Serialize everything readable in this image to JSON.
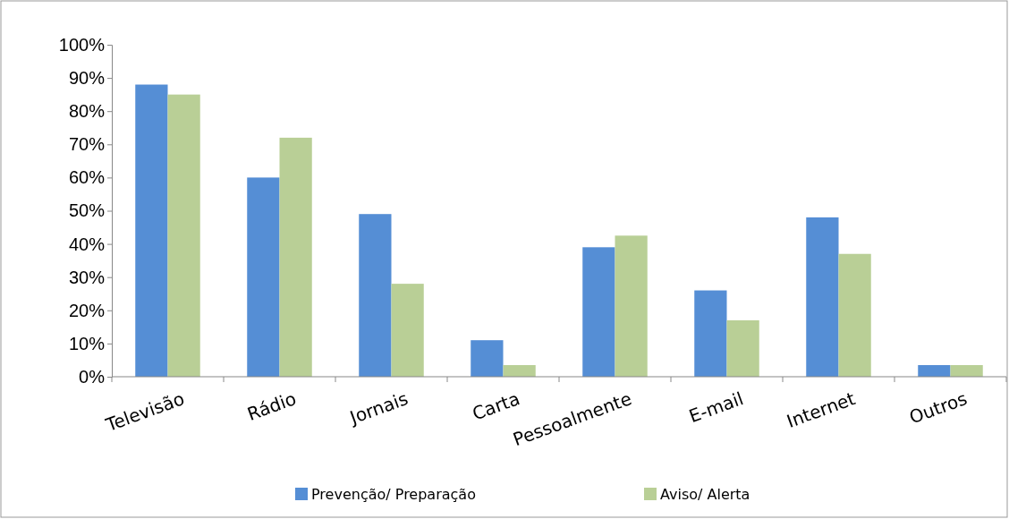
{
  "chart_data": {
    "type": "bar",
    "categories": [
      "Televisão",
      "Rádio",
      "Jornais",
      "Carta",
      "Pessoalmente",
      "E-mail",
      "Internet",
      "Outros"
    ],
    "series": [
      {
        "name": "Prevenção/ Preparação",
        "color": "#558ed5",
        "values": [
          88,
          60,
          49,
          11,
          39,
          26,
          48,
          3.5
        ]
      },
      {
        "name": "Aviso/ Alerta",
        "color": "#b9cf96",
        "values": [
          85,
          72,
          28,
          3.5,
          42.5,
          17,
          37,
          3.5
        ]
      }
    ],
    "ylim": [
      0,
      100
    ],
    "yticks": [
      {
        "value": 0,
        "label": "0%"
      },
      {
        "value": 10,
        "label": "10%"
      },
      {
        "value": 20,
        "label": "20%"
      },
      {
        "value": 30,
        "label": "30%"
      },
      {
        "value": 40,
        "label": "40%"
      },
      {
        "value": 50,
        "label": "50%"
      },
      {
        "value": 60,
        "label": "60%"
      },
      {
        "value": 70,
        "label": "70%"
      },
      {
        "value": 80,
        "label": "80%"
      },
      {
        "value": 90,
        "label": "90%"
      },
      {
        "value": 100,
        "label": "100%"
      }
    ],
    "grid": false,
    "legend": "bottom"
  }
}
